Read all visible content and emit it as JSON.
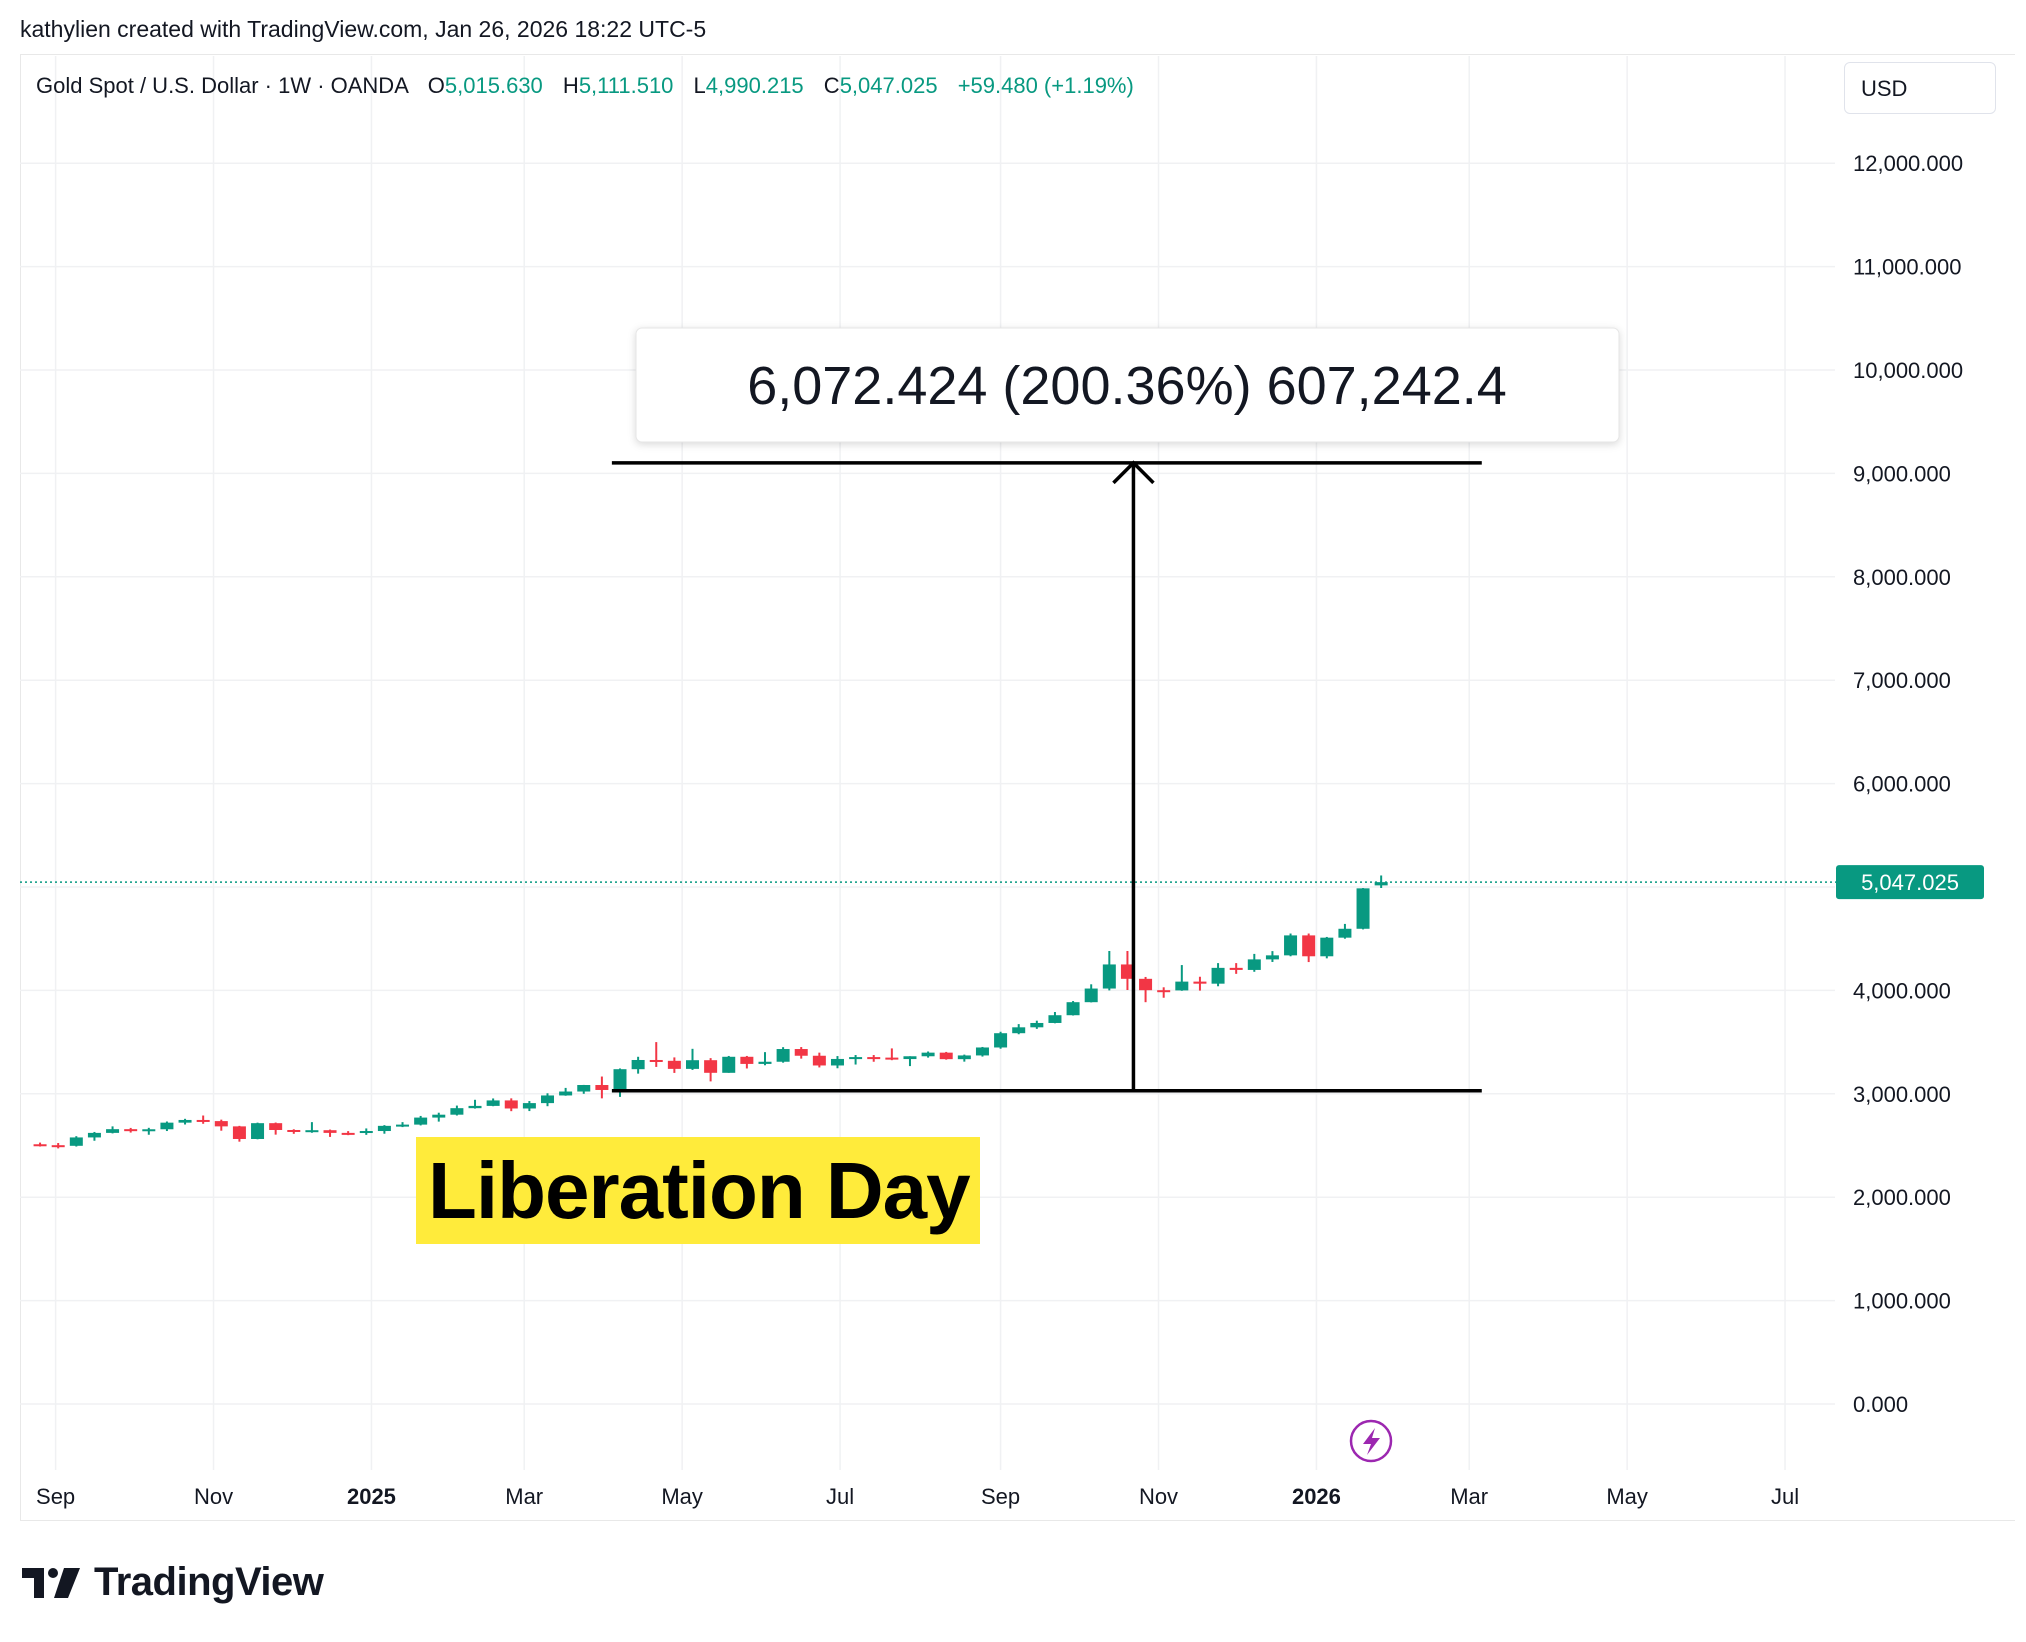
{
  "watermark": "kathylien created with TradingView.com, Jan 26, 2026 18:22 UTC-5",
  "legend": {
    "symbol": "Gold Spot / U.S. Dollar · 1W · OANDA",
    "o_label": "O",
    "o": "5,015.630",
    "h_label": "H",
    "h": "5,111.510",
    "l_label": "L",
    "l": "4,990.215",
    "c_label": "C",
    "c": "5,047.025",
    "change": "+59.480 (+1.19%)"
  },
  "currency": "USD",
  "logo": "TradingView",
  "colors": {
    "up": "#089981",
    "down": "#f23645",
    "highlight": "#ffeb3b",
    "event_icon": "#9c27b0"
  },
  "chart_data": {
    "type": "candlestick",
    "interval": "1W",
    "ylim": [
      -400,
      12500
    ],
    "yticks": [
      0,
      1000,
      2000,
      3000,
      4000,
      5000,
      6000,
      7000,
      8000,
      9000,
      10000,
      11000,
      12000
    ],
    "ytick_labels": [
      "0.000",
      "1,000.000",
      "2,000.000",
      "3,000.000",
      "4,000.000",
      "",
      "6,000.000",
      "7,000.000",
      "8,000.000",
      "9,000.000",
      "10,000.000",
      "11,000.000",
      "12,000.000"
    ],
    "xticks": [
      {
        "date": "2024-09-01",
        "label": "Sep",
        "bold": false
      },
      {
        "date": "2024-11-01",
        "label": "Nov",
        "bold": false
      },
      {
        "date": "2025-01-01",
        "label": "2025",
        "bold": true
      },
      {
        "date": "2025-03-01",
        "label": "Mar",
        "bold": false
      },
      {
        "date": "2025-05-01",
        "label": "May",
        "bold": false
      },
      {
        "date": "2025-07-01",
        "label": "Jul",
        "bold": false
      },
      {
        "date": "2025-09-01",
        "label": "Sep",
        "bold": false
      },
      {
        "date": "2025-11-01",
        "label": "Nov",
        "bold": false
      },
      {
        "date": "2026-01-01",
        "label": "2026",
        "bold": true
      },
      {
        "date": "2026-03-01",
        "label": "Mar",
        "bold": false
      },
      {
        "date": "2026-05-01",
        "label": "May",
        "bold": false
      },
      {
        "date": "2026-07-01",
        "label": "Jul",
        "bold": false
      }
    ],
    "last_price": 5047.025,
    "last_price_label": "5,047.025",
    "weeks": [
      "2024-08-26",
      "2024-09-02",
      "2024-09-09",
      "2024-09-16",
      "2024-09-23",
      "2024-09-30",
      "2024-10-07",
      "2024-10-14",
      "2024-10-21",
      "2024-10-28",
      "2024-11-04",
      "2024-11-11",
      "2024-11-18",
      "2024-11-25",
      "2024-12-02",
      "2024-12-09",
      "2024-12-16",
      "2024-12-23",
      "2024-12-30",
      "2025-01-06",
      "2025-01-13",
      "2025-01-20",
      "2025-01-27",
      "2025-02-03",
      "2025-02-10",
      "2025-02-17",
      "2025-02-24",
      "2025-03-03",
      "2025-03-10",
      "2025-03-17",
      "2025-03-24",
      "2025-03-31",
      "2025-04-07",
      "2025-04-14",
      "2025-04-21",
      "2025-04-28",
      "2025-05-05",
      "2025-05-12",
      "2025-05-19",
      "2025-05-26",
      "2025-06-02",
      "2025-06-09",
      "2025-06-16",
      "2025-06-23",
      "2025-06-30",
      "2025-07-07",
      "2025-07-14",
      "2025-07-21",
      "2025-07-28",
      "2025-08-04",
      "2025-08-11",
      "2025-08-18",
      "2025-08-25",
      "2025-09-01",
      "2025-09-08",
      "2025-09-15",
      "2025-09-22",
      "2025-09-29",
      "2025-10-06",
      "2025-10-13",
      "2025-10-20",
      "2025-10-27",
      "2025-11-03",
      "2025-11-10",
      "2025-11-17",
      "2025-11-24",
      "2025-12-01",
      "2025-12-08",
      "2025-12-15",
      "2025-12-22",
      "2025-12-29",
      "2026-01-05",
      "2026-01-12",
      "2026-01-19",
      "2026-01-26"
    ],
    "ohlc": [
      [
        2512,
        2528,
        2490,
        2503
      ],
      [
        2503,
        2524,
        2472,
        2497
      ],
      [
        2497,
        2590,
        2490,
        2578
      ],
      [
        2578,
        2631,
        2546,
        2622
      ],
      [
        2622,
        2685,
        2617,
        2658
      ],
      [
        2658,
        2670,
        2625,
        2653
      ],
      [
        2653,
        2671,
        2604,
        2657
      ],
      [
        2657,
        2732,
        2640,
        2721
      ],
      [
        2721,
        2758,
        2703,
        2747
      ],
      [
        2747,
        2790,
        2710,
        2736
      ],
      [
        2736,
        2750,
        2643,
        2685
      ],
      [
        2685,
        2690,
        2537,
        2563
      ],
      [
        2563,
        2721,
        2560,
        2716
      ],
      [
        2716,
        2722,
        2605,
        2650
      ],
      [
        2650,
        2657,
        2613,
        2633
      ],
      [
        2633,
        2726,
        2623,
        2648
      ],
      [
        2648,
        2654,
        2583,
        2622
      ],
      [
        2622,
        2639,
        2600,
        2621
      ],
      [
        2621,
        2665,
        2603,
        2640
      ],
      [
        2640,
        2697,
        2614,
        2690
      ],
      [
        2690,
        2726,
        2678,
        2702
      ],
      [
        2702,
        2786,
        2694,
        2770
      ],
      [
        2770,
        2817,
        2731,
        2798
      ],
      [
        2798,
        2886,
        2790,
        2861
      ],
      [
        2861,
        2942,
        2857,
        2883
      ],
      [
        2883,
        2955,
        2880,
        2936
      ],
      [
        2936,
        2956,
        2832,
        2858
      ],
      [
        2858,
        2930,
        2833,
        2910
      ],
      [
        2910,
        3005,
        2880,
        2984
      ],
      [
        2984,
        3057,
        2981,
        3022
      ],
      [
        3022,
        3086,
        3000,
        3085
      ],
      [
        3085,
        3167,
        2956,
        3037
      ],
      [
        3037,
        3245,
        2970,
        3238
      ],
      [
        3238,
        3358,
        3195,
        3327
      ],
      [
        3327,
        3500,
        3260,
        3319
      ],
      [
        3319,
        3352,
        3202,
        3241
      ],
      [
        3241,
        3435,
        3231,
        3325
      ],
      [
        3325,
        3345,
        3120,
        3203
      ],
      [
        3203,
        3366,
        3203,
        3358
      ],
      [
        3358,
        3366,
        3245,
        3289
      ],
      [
        3289,
        3403,
        3276,
        3310
      ],
      [
        3310,
        3451,
        3301,
        3433
      ],
      [
        3433,
        3452,
        3340,
        3368
      ],
      [
        3368,
        3398,
        3255,
        3274
      ],
      [
        3274,
        3365,
        3247,
        3337
      ],
      [
        3337,
        3375,
        3283,
        3355
      ],
      [
        3355,
        3375,
        3310,
        3350
      ],
      [
        3350,
        3439,
        3325,
        3336
      ],
      [
        3336,
        3363,
        3268,
        3363
      ],
      [
        3363,
        3409,
        3350,
        3398
      ],
      [
        3398,
        3405,
        3330,
        3335
      ],
      [
        3335,
        3379,
        3311,
        3371
      ],
      [
        3371,
        3453,
        3360,
        3448
      ],
      [
        3448,
        3600,
        3436,
        3586
      ],
      [
        3586,
        3674,
        3576,
        3643
      ],
      [
        3643,
        3707,
        3628,
        3685
      ],
      [
        3685,
        3791,
        3682,
        3760
      ],
      [
        3760,
        3897,
        3757,
        3886
      ],
      [
        3886,
        4059,
        3884,
        4018
      ],
      [
        4018,
        4381,
        4000,
        4251
      ],
      [
        4251,
        4381,
        4004,
        4112
      ],
      [
        4112,
        4130,
        3886,
        4002
      ],
      [
        4002,
        4030,
        3929,
        4000
      ],
      [
        4000,
        4245,
        3996,
        4085
      ],
      [
        4085,
        4132,
        3998,
        4065
      ],
      [
        4065,
        4264,
        4040,
        4218
      ],
      [
        4218,
        4264,
        4160,
        4198
      ],
      [
        4198,
        4353,
        4180,
        4300
      ],
      [
        4300,
        4380,
        4275,
        4339
      ],
      [
        4339,
        4550,
        4330,
        4532
      ],
      [
        4532,
        4550,
        4274,
        4330
      ],
      [
        4330,
        4517,
        4310,
        4510
      ],
      [
        4510,
        4643,
        4500,
        4596
      ],
      [
        4596,
        4990,
        4590,
        4987
      ],
      [
        5015.63,
        5111.51,
        4990.215,
        5047.025
      ]
    ],
    "measure": {
      "from_price": 3030,
      "to_price": 9102,
      "from_date": "2025-03-31",
      "to_date": "2026-03-02",
      "arrow_date": "2025-10-20",
      "label": "6,072.424 (200.36%) 607,242.4"
    },
    "annotation": "Liberation Day"
  }
}
